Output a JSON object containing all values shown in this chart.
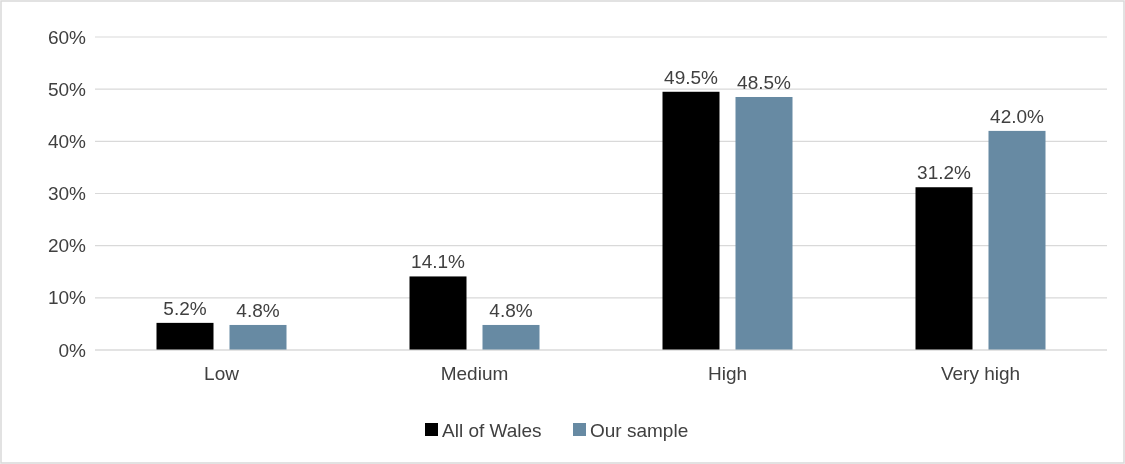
{
  "chart_data": {
    "type": "bar",
    "categories": [
      "Low",
      "Medium",
      "High",
      "Very high"
    ],
    "series": [
      {
        "name": "All of Wales",
        "color": "#000000",
        "values": [
          5.2,
          14.1,
          49.5,
          31.2
        ],
        "value_labels": [
          "5.2%",
          "14.1%",
          "49.5%",
          "31.2%"
        ]
      },
      {
        "name": "Our sample",
        "color": "#678aa3",
        "values": [
          4.8,
          4.8,
          48.5,
          42.0
        ],
        "value_labels": [
          "4.8%",
          "4.8%",
          "48.5%",
          "42.0%"
        ]
      }
    ],
    "ylim": [
      0,
      60
    ],
    "yticks": [
      {
        "value": 0,
        "label": "0%"
      },
      {
        "value": 10,
        "label": "10%"
      },
      {
        "value": 20,
        "label": "20%"
      },
      {
        "value": 30,
        "label": "30%"
      },
      {
        "value": 40,
        "label": "40%"
      },
      {
        "value": 50,
        "label": "50%"
      },
      {
        "value": 60,
        "label": "60%"
      }
    ],
    "grid": "y",
    "legend": "bottom"
  }
}
